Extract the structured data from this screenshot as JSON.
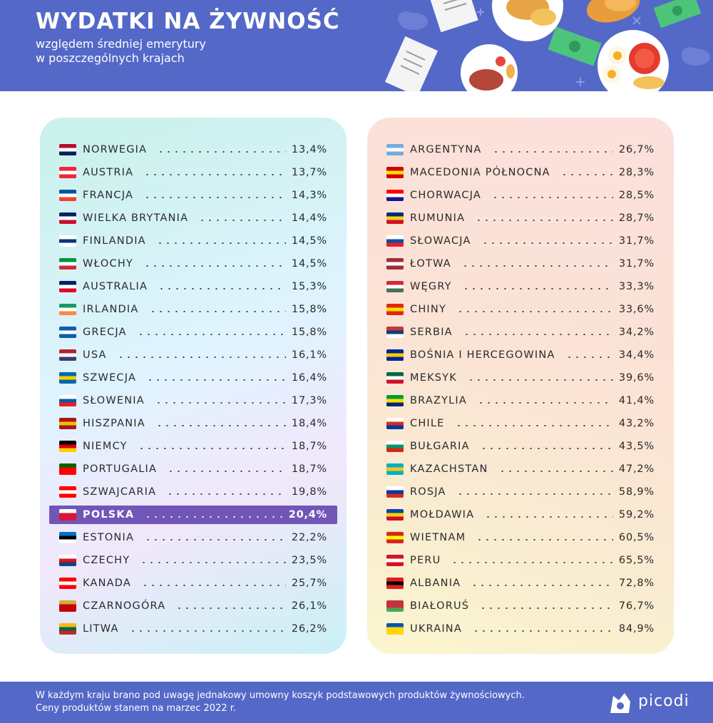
{
  "header": {
    "title": "WYDATKI NA ŻYWNOŚĆ",
    "subtitle_line1": "względem średniej emerytury",
    "subtitle_line2": "w poszczególnych krajach"
  },
  "chart_data": {
    "type": "table",
    "columns": [
      {
        "rows": [
          {
            "country": "NORWEGIA",
            "value": "13,4%",
            "flag": [
              "#ba0c2f",
              "#ffffff",
              "#00205b"
            ]
          },
          {
            "country": "AUSTRIA",
            "value": "13,7%",
            "flag": [
              "#ed2939",
              "#ffffff",
              "#ed2939"
            ]
          },
          {
            "country": "FRANCJA",
            "value": "14,3%",
            "flag": [
              "#0055a4",
              "#ffffff",
              "#ef4135"
            ]
          },
          {
            "country": "WIELKA BRYTANIA",
            "value": "14,4%",
            "flag": [
              "#012169",
              "#ffffff",
              "#c8102e"
            ]
          },
          {
            "country": "FINLANDIA",
            "value": "14,5%",
            "flag": [
              "#ffffff",
              "#003580",
              "#ffffff"
            ]
          },
          {
            "country": "WŁOCHY",
            "value": "14,5%",
            "flag": [
              "#009246",
              "#ffffff",
              "#ce2b37"
            ]
          },
          {
            "country": "AUSTRALIA",
            "value": "15,3%",
            "flag": [
              "#012169",
              "#ffffff",
              "#e4002b"
            ]
          },
          {
            "country": "IRLANDIA",
            "value": "15,8%",
            "flag": [
              "#169b62",
              "#ffffff",
              "#ff883e"
            ]
          },
          {
            "country": "GRECJA",
            "value": "15,8%",
            "flag": [
              "#0d5eaf",
              "#ffffff",
              "#0d5eaf"
            ]
          },
          {
            "country": "USA",
            "value": "16,1%",
            "flag": [
              "#b22234",
              "#ffffff",
              "#3c3b6e"
            ]
          },
          {
            "country": "SZWECJA",
            "value": "16,4%",
            "flag": [
              "#006aa7",
              "#fecc00",
              "#006aa7"
            ]
          },
          {
            "country": "SŁOWENIA",
            "value": "17,3%",
            "flag": [
              "#ffffff",
              "#005da4",
              "#ed1c24"
            ]
          },
          {
            "country": "HISZPANIA",
            "value": "18,4%",
            "flag": [
              "#aa151b",
              "#f1bf00",
              "#aa151b"
            ]
          },
          {
            "country": "NIEMCY",
            "value": "18,7%",
            "flag": [
              "#000000",
              "#dd0000",
              "#ffce00"
            ]
          },
          {
            "country": "PORTUGALIA",
            "value": "18,7%",
            "flag": [
              "#006600",
              "#ff0000",
              "#ff0000"
            ]
          },
          {
            "country": "SZWAJCARIA",
            "value": "19,8%",
            "flag": [
              "#ff0000",
              "#ffffff",
              "#ff0000"
            ]
          },
          {
            "country": "POLSKA",
            "value": "20,4%",
            "flag": [
              "#ffffff",
              "#dc143c",
              "#dc143c"
            ],
            "highlight": true
          },
          {
            "country": "ESTONIA",
            "value": "22,2%",
            "flag": [
              "#0072ce",
              "#000000",
              "#ffffff"
            ]
          },
          {
            "country": "CZECHY",
            "value": "23,5%",
            "flag": [
              "#ffffff",
              "#d7141a",
              "#11457e"
            ]
          },
          {
            "country": "KANADA",
            "value": "25,7%",
            "flag": [
              "#ff0000",
              "#ffffff",
              "#ff0000"
            ]
          },
          {
            "country": "CZARNOGÓRA",
            "value": "26,1%",
            "flag": [
              "#d3ae3b",
              "#c40308",
              "#c40308"
            ]
          },
          {
            "country": "LITWA",
            "value": "26,2%",
            "flag": [
              "#fdb913",
              "#006a44",
              "#c1272d"
            ]
          }
        ]
      },
      {
        "rows": [
          {
            "country": "ARGENTYNA",
            "value": "26,7%",
            "flag": [
              "#74acdf",
              "#ffffff",
              "#74acdf"
            ]
          },
          {
            "country": "MACEDONIA PÓŁNOCNA",
            "value": "28,3%",
            "flag": [
              "#d20000",
              "#ffe600",
              "#d20000"
            ]
          },
          {
            "country": "CHORWACJA",
            "value": "28,5%",
            "flag": [
              "#ff0000",
              "#ffffff",
              "#171796"
            ]
          },
          {
            "country": "RUMUNIA",
            "value": "28,7%",
            "flag": [
              "#002b7f",
              "#fcd116",
              "#ce1126"
            ]
          },
          {
            "country": "SŁOWACJA",
            "value": "31,7%",
            "flag": [
              "#ffffff",
              "#0b4ea2",
              "#ee1c25"
            ]
          },
          {
            "country": "ŁOTWA",
            "value": "31,7%",
            "flag": [
              "#9e3039",
              "#ffffff",
              "#9e3039"
            ]
          },
          {
            "country": "WĘGRY",
            "value": "33,3%",
            "flag": [
              "#ce2939",
              "#ffffff",
              "#477050"
            ]
          },
          {
            "country": "CHINY",
            "value": "33,6%",
            "flag": [
              "#de2910",
              "#ffde00",
              "#de2910"
            ]
          },
          {
            "country": "SERBIA",
            "value": "34,2%",
            "flag": [
              "#c6363c",
              "#0c4076",
              "#ffffff"
            ]
          },
          {
            "country": "BOŚNIA I HERCEGOWINA",
            "value": "34,4%",
            "flag": [
              "#002395",
              "#fecb00",
              "#002395"
            ]
          },
          {
            "country": "MEKSYK",
            "value": "39,6%",
            "flag": [
              "#006847",
              "#ffffff",
              "#ce1126"
            ]
          },
          {
            "country": "BRAZYLIA",
            "value": "41,4%",
            "flag": [
              "#009c3b",
              "#ffdf00",
              "#002776"
            ]
          },
          {
            "country": "CHILE",
            "value": "43,2%",
            "flag": [
              "#ffffff",
              "#d52b1e",
              "#0039a6"
            ]
          },
          {
            "country": "BUŁGARIA",
            "value": "43,5%",
            "flag": [
              "#ffffff",
              "#00966e",
              "#d62612"
            ]
          },
          {
            "country": "KAZACHSTAN",
            "value": "47,2%",
            "flag": [
              "#00afca",
              "#fec50c",
              "#00afca"
            ]
          },
          {
            "country": "ROSJA",
            "value": "58,9%",
            "flag": [
              "#ffffff",
              "#0039a6",
              "#d52b1e"
            ]
          },
          {
            "country": "MOŁDAWIA",
            "value": "59,2%",
            "flag": [
              "#0046ae",
              "#ffd200",
              "#cc092f"
            ]
          },
          {
            "country": "WIETNAM",
            "value": "60,5%",
            "flag": [
              "#da251d",
              "#ffff00",
              "#da251d"
            ]
          },
          {
            "country": "PERU",
            "value": "65,5%",
            "flag": [
              "#d91023",
              "#ffffff",
              "#d91023"
            ]
          },
          {
            "country": "ALBANIA",
            "value": "72,8%",
            "flag": [
              "#e41e20",
              "#000000",
              "#e41e20"
            ]
          },
          {
            "country": "BIAŁORUŚ",
            "value": "76,7%",
            "flag": [
              "#c8313e",
              "#c8313e",
              "#4aa657"
            ]
          },
          {
            "country": "UKRAINA",
            "value": "84,9%",
            "flag": [
              "#0057b7",
              "#ffd700",
              "#ffd700"
            ]
          }
        ]
      }
    ]
  },
  "footer": {
    "note_line1": "W każdym kraju brano pod uwagę jednakowy umowny koszyk podstawowych produktów żywnościowych.",
    "note_line2": "Ceny produktów stanem na marzec 2022 r.",
    "brand": "picodi"
  }
}
